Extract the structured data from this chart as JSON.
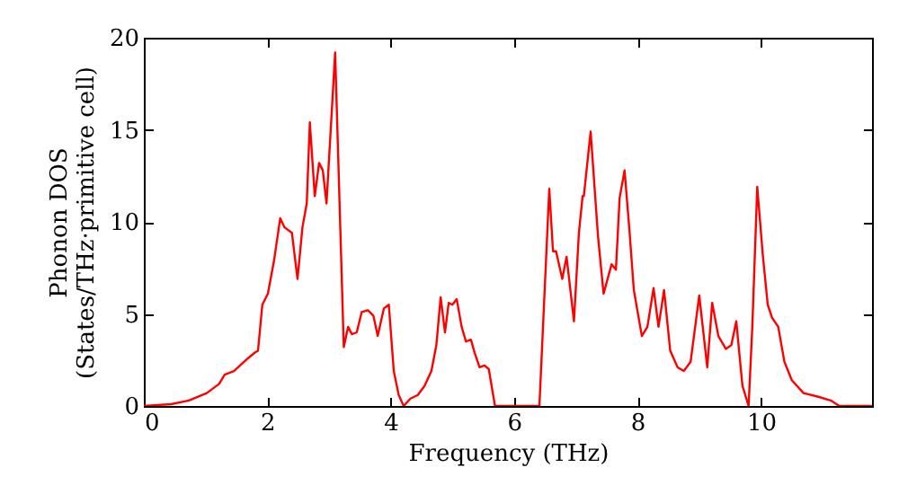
{
  "chart_data": {
    "type": "line",
    "xlabel": "Frequency (THz)",
    "ylabel": "Phonon DOS\n(States/THz·primitive cell)",
    "xlim": [
      0,
      11.8
    ],
    "ylim": [
      0,
      20
    ],
    "xticks": [
      0,
      2,
      4,
      6,
      8,
      10
    ],
    "yticks": [
      0,
      5,
      10,
      15,
      20
    ],
    "grid": false,
    "legend": false,
    "marker": "none",
    "line_style": "solid",
    "series": [
      {
        "color": "#ff0000",
        "x": [
          0,
          0.44,
          0.73,
          1.02,
          1.22,
          1.31,
          1.46,
          1.69,
          1.8,
          1.85,
          1.92,
          2.01,
          2.11,
          2.21,
          2.28,
          2.4,
          2.49,
          2.57,
          2.64,
          2.69,
          2.77,
          2.84,
          2.9,
          2.96,
          3.1,
          3.24,
          3.31,
          3.37,
          3.45,
          3.53,
          3.63,
          3.72,
          3.79,
          3.89,
          3.97,
          4.05,
          4.13,
          4.21,
          4.32,
          4.44,
          4.55,
          4.66,
          4.74,
          4.81,
          4.88,
          4.94,
          5.0,
          5.07,
          5.15,
          5.22,
          5.3,
          5.36,
          5.44,
          5.52,
          5.59,
          5.69,
          6.41,
          6.57,
          6.63,
          6.68,
          6.78,
          6.85,
          6.97,
          7.05,
          7.11,
          7.13,
          7.24,
          7.36,
          7.45,
          7.58,
          7.65,
          7.71,
          7.79,
          7.87,
          7.94,
          8.07,
          8.16,
          8.26,
          8.34,
          8.43,
          8.53,
          8.65,
          8.75,
          8.86,
          9.0,
          9.13,
          9.21,
          9.31,
          9.43,
          9.52,
          9.6,
          9.7,
          9.8,
          9.86,
          9.94,
          10.03,
          10.11,
          10.18,
          10.28,
          10.38,
          10.5,
          10.69,
          10.93,
          11.13,
          11.27,
          11.8
        ],
        "values": [
          0,
          0.1,
          0.3,
          0.7,
          1.2,
          1.7,
          1.9,
          2.6,
          2.9,
          3.0,
          5.5,
          6.1,
          7.9,
          10.2,
          9.7,
          9.4,
          6.9,
          9.7,
          11.0,
          15.4,
          11.4,
          13.2,
          12.8,
          11.0,
          19.2,
          3.2,
          4.3,
          3.9,
          4.0,
          5.1,
          5.2,
          4.9,
          3.8,
          5.3,
          5.5,
          1.9,
          0.6,
          0,
          0.4,
          0.6,
          1.1,
          1.9,
          3.3,
          5.9,
          4.0,
          5.6,
          5.5,
          5.8,
          4.3,
          3.5,
          3.6,
          2.9,
          2.1,
          2.2,
          2.0,
          0,
          0,
          11.8,
          8.4,
          8.4,
          6.9,
          8.1,
          4.6,
          9.4,
          11.4,
          11.4,
          14.9,
          9.2,
          6.1,
          7.7,
          7.4,
          11.3,
          12.8,
          9.5,
          6.3,
          3.8,
          4.3,
          6.4,
          4.3,
          6.3,
          3.0,
          2.1,
          1.9,
          2.4,
          6.0,
          2.1,
          5.6,
          3.8,
          3.1,
          3.3,
          4.6,
          1.1,
          0,
          4.3,
          11.9,
          8.2,
          5.5,
          4.8,
          4.3,
          2.4,
          1.4,
          0.7,
          0.5,
          0.3,
          0,
          0
        ]
      }
    ]
  }
}
